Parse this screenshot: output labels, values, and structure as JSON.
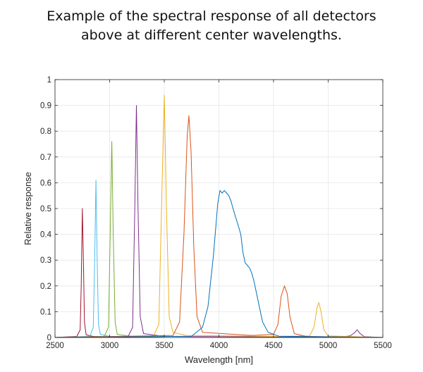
{
  "title_lines": [
    "Example of the spectral response of all detectors",
    "above at different center wavelengths."
  ],
  "chart_data": {
    "type": "line",
    "title": "Example of the spectral response of all detectors above at different center wavelengths.",
    "xlabel": "Wavelength [nm]",
    "ylabel": "Relative response",
    "xlim": [
      2500,
      5500
    ],
    "ylim": [
      0,
      1
    ],
    "xticks": [
      2500,
      3000,
      3500,
      4000,
      4500,
      5000,
      5500
    ],
    "yticks": [
      0,
      0.1,
      0.2,
      0.3,
      0.4,
      0.5,
      0.6,
      0.7,
      0.8,
      0.9,
      1
    ],
    "ytick_labels": [
      "0",
      "0.1",
      "0.2",
      "0.3",
      "0.4",
      "0.5",
      "0.6",
      "0.7",
      "0.8",
      "0.9",
      "1"
    ],
    "grid": true,
    "legend": "none",
    "series": [
      {
        "color": "#A2142F",
        "points": [
          [
            2500,
            0.0
          ],
          [
            2700,
            0.004
          ],
          [
            2730,
            0.03
          ],
          [
            2740,
            0.2
          ],
          [
            2750,
            0.5
          ],
          [
            2760,
            0.3
          ],
          [
            2770,
            0.06
          ],
          [
            2785,
            0.01
          ],
          [
            2850,
            0.004
          ],
          [
            3200,
            0.0
          ]
        ]
      },
      {
        "color": "#4DBEEE",
        "points": [
          [
            2500,
            0.0
          ],
          [
            2820,
            0.004
          ],
          [
            2850,
            0.04
          ],
          [
            2863,
            0.3
          ],
          [
            2875,
            0.61
          ],
          [
            2886,
            0.3
          ],
          [
            2898,
            0.05
          ],
          [
            2915,
            0.012
          ],
          [
            3000,
            0.004
          ],
          [
            3300,
            0.0
          ]
        ]
      },
      {
        "color": "#77AC30",
        "points": [
          [
            2500,
            0.0
          ],
          [
            2950,
            0.004
          ],
          [
            2990,
            0.04
          ],
          [
            3005,
            0.4
          ],
          [
            3020,
            0.76
          ],
          [
            3033,
            0.4
          ],
          [
            3050,
            0.06
          ],
          [
            3070,
            0.012
          ],
          [
            3200,
            0.004
          ],
          [
            3500,
            0.0
          ]
        ]
      },
      {
        "color": "#7E2F8E",
        "points": [
          [
            2500,
            0.0
          ],
          [
            3170,
            0.004
          ],
          [
            3210,
            0.04
          ],
          [
            3230,
            0.5
          ],
          [
            3245,
            0.9
          ],
          [
            3260,
            0.5
          ],
          [
            3280,
            0.08
          ],
          [
            3310,
            0.015
          ],
          [
            3500,
            0.004
          ],
          [
            5100,
            0.001
          ],
          [
            5200,
            0.006
          ],
          [
            5240,
            0.018
          ],
          [
            5265,
            0.03
          ],
          [
            5290,
            0.016
          ],
          [
            5330,
            0.003
          ],
          [
            5500,
            0.0
          ]
        ]
      },
      {
        "color": "#EDB120",
        "points": [
          [
            2500,
            0.0
          ],
          [
            3400,
            0.005
          ],
          [
            3450,
            0.05
          ],
          [
            3475,
            0.5
          ],
          [
            3500,
            0.94
          ],
          [
            3520,
            0.5
          ],
          [
            3545,
            0.08
          ],
          [
            3580,
            0.02
          ],
          [
            3700,
            0.008
          ],
          [
            4500,
            0.004
          ],
          [
            4830,
            0.006
          ],
          [
            4870,
            0.04
          ],
          [
            4900,
            0.12
          ],
          [
            4915,
            0.135
          ],
          [
            4935,
            0.1
          ],
          [
            4960,
            0.03
          ],
          [
            5000,
            0.006
          ],
          [
            5500,
            0.0
          ]
        ]
      },
      {
        "color": "#D95319",
        "points": [
          [
            2500,
            0.0
          ],
          [
            3580,
            0.008
          ],
          [
            3640,
            0.06
          ],
          [
            3680,
            0.4
          ],
          [
            3710,
            0.78
          ],
          [
            3725,
            0.86
          ],
          [
            3745,
            0.72
          ],
          [
            3770,
            0.35
          ],
          [
            3800,
            0.08
          ],
          [
            3850,
            0.02
          ],
          [
            4300,
            0.008
          ],
          [
            4500,
            0.012
          ],
          [
            4540,
            0.05
          ],
          [
            4570,
            0.16
          ],
          [
            4600,
            0.2
          ],
          [
            4625,
            0.17
          ],
          [
            4650,
            0.08
          ],
          [
            4690,
            0.015
          ],
          [
            4800,
            0.004
          ],
          [
            5500,
            0.0
          ]
        ]
      },
      {
        "color": "#0072BD",
        "points": [
          [
            2500,
            0.0
          ],
          [
            3750,
            0.005
          ],
          [
            3850,
            0.04
          ],
          [
            3900,
            0.12
          ],
          [
            3950,
            0.32
          ],
          [
            3990,
            0.52
          ],
          [
            4010,
            0.57
          ],
          [
            4030,
            0.56
          ],
          [
            4050,
            0.57
          ],
          [
            4070,
            0.56
          ],
          [
            4090,
            0.55
          ],
          [
            4110,
            0.53
          ],
          [
            4130,
            0.5
          ],
          [
            4150,
            0.47
          ],
          [
            4180,
            0.43
          ],
          [
            4200,
            0.4
          ],
          [
            4220,
            0.33
          ],
          [
            4240,
            0.29
          ],
          [
            4260,
            0.28
          ],
          [
            4280,
            0.27
          ],
          [
            4300,
            0.25
          ],
          [
            4320,
            0.22
          ],
          [
            4340,
            0.18
          ],
          [
            4370,
            0.12
          ],
          [
            4400,
            0.06
          ],
          [
            4450,
            0.02
          ],
          [
            4550,
            0.005
          ],
          [
            5500,
            0.0
          ]
        ]
      }
    ]
  }
}
